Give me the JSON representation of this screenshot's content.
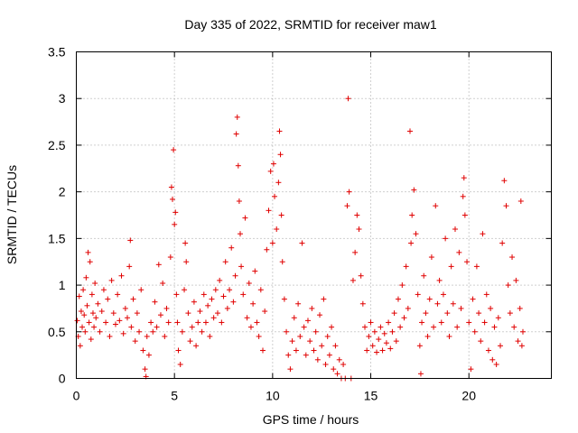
{
  "chart_data": {
    "type": "scatter",
    "title": "Day 335 of 2022, SRMTID for receiver maw1",
    "xlabel": "GPS time / hours",
    "ylabel": "SRMTID / TECUs",
    "xlim": [
      0,
      24.2
    ],
    "ylim": [
      0,
      3.5
    ],
    "x_ticks": [
      0,
      5,
      10,
      15,
      20
    ],
    "x_tick_labels": [
      "0",
      "5",
      "10",
      "15",
      "20"
    ],
    "y_ticks": [
      0,
      0.5,
      1,
      1.5,
      2,
      2.5,
      3,
      3.5
    ],
    "y_tick_labels": [
      "0",
      "0.5",
      "1",
      "1.5",
      "2",
      "2.5",
      "3",
      "3.5"
    ],
    "grid": true,
    "marker": "+",
    "color": "#e00000",
    "series": [
      {
        "name": "maw1",
        "points": [
          [
            0.05,
            0.62
          ],
          [
            0.1,
            0.45
          ],
          [
            0.15,
            0.88
          ],
          [
            0.2,
            0.35
          ],
          [
            0.25,
            0.72
          ],
          [
            0.3,
            0.55
          ],
          [
            0.35,
            0.95
          ],
          [
            0.4,
            0.68
          ],
          [
            0.45,
            0.5
          ],
          [
            0.5,
            1.08
          ],
          [
            0.55,
            0.78
          ],
          [
            0.6,
            1.35
          ],
          [
            0.65,
            0.6
          ],
          [
            0.7,
            1.25
          ],
          [
            0.75,
            0.42
          ],
          [
            0.8,
            0.9
          ],
          [
            0.85,
            0.7
          ],
          [
            0.9,
            0.55
          ],
          [
            0.95,
            1.02
          ],
          [
            1.0,
            0.65
          ],
          [
            1.1,
            0.8
          ],
          [
            1.2,
            0.5
          ],
          [
            1.3,
            0.72
          ],
          [
            1.4,
            0.95
          ],
          [
            1.5,
            0.6
          ],
          [
            1.6,
            0.85
          ],
          [
            1.7,
            0.45
          ],
          [
            1.8,
            1.05
          ],
          [
            1.9,
            0.7
          ],
          [
            2.0,
            0.58
          ],
          [
            2.1,
            0.9
          ],
          [
            2.2,
            0.62
          ],
          [
            2.3,
            1.1
          ],
          [
            2.4,
            0.48
          ],
          [
            2.5,
            0.75
          ],
          [
            2.6,
            0.65
          ],
          [
            2.7,
            1.2
          ],
          [
            2.75,
            1.48
          ],
          [
            2.8,
            0.55
          ],
          [
            2.9,
            0.85
          ],
          [
            3.0,
            0.4
          ],
          [
            3.1,
            0.7
          ],
          [
            3.2,
            0.5
          ],
          [
            3.3,
            0.95
          ],
          [
            3.4,
            0.3
          ],
          [
            3.5,
            0.1
          ],
          [
            3.55,
            0.02
          ],
          [
            3.6,
            0.45
          ],
          [
            3.7,
            0.25
          ],
          [
            3.8,
            0.6
          ],
          [
            3.9,
            0.5
          ],
          [
            4.0,
            0.82
          ],
          [
            4.1,
            0.55
          ],
          [
            4.2,
            1.22
          ],
          [
            4.3,
            0.68
          ],
          [
            4.4,
            1.02
          ],
          [
            4.5,
            0.45
          ],
          [
            4.6,
            0.75
          ],
          [
            4.7,
            0.6
          ],
          [
            4.8,
            1.3
          ],
          [
            4.85,
            2.05
          ],
          [
            4.9,
            1.92
          ],
          [
            4.95,
            2.45
          ],
          [
            5.0,
            1.65
          ],
          [
            5.05,
            1.78
          ],
          [
            5.1,
            0.9
          ],
          [
            5.15,
            0.6
          ],
          [
            5.2,
            0.3
          ],
          [
            5.3,
            0.15
          ],
          [
            5.4,
            0.5
          ],
          [
            5.5,
            0.95
          ],
          [
            5.55,
            1.45
          ],
          [
            5.6,
            1.25
          ],
          [
            5.7,
            0.7
          ],
          [
            5.8,
            0.4
          ],
          [
            5.9,
            0.55
          ],
          [
            6.0,
            0.82
          ],
          [
            6.1,
            0.35
          ],
          [
            6.2,
            0.6
          ],
          [
            6.3,
            0.72
          ],
          [
            6.4,
            0.5
          ],
          [
            6.5,
            0.9
          ],
          [
            6.6,
            0.6
          ],
          [
            6.7,
            0.78
          ],
          [
            6.8,
            0.45
          ],
          [
            6.9,
            0.85
          ],
          [
            7.0,
            0.65
          ],
          [
            7.1,
            0.95
          ],
          [
            7.2,
            0.7
          ],
          [
            7.3,
            1.05
          ],
          [
            7.4,
            0.6
          ],
          [
            7.5,
            0.88
          ],
          [
            7.6,
            1.25
          ],
          [
            7.7,
            0.75
          ],
          [
            7.8,
            0.95
          ],
          [
            7.9,
            1.4
          ],
          [
            8.0,
            0.82
          ],
          [
            8.1,
            1.1
          ],
          [
            8.15,
            2.62
          ],
          [
            8.2,
            2.8
          ],
          [
            8.25,
            2.28
          ],
          [
            8.3,
            1.9
          ],
          [
            8.35,
            1.55
          ],
          [
            8.4,
            1.2
          ],
          [
            8.5,
            0.9
          ],
          [
            8.6,
            1.72
          ],
          [
            8.7,
            0.65
          ],
          [
            8.8,
            1.02
          ],
          [
            8.9,
            0.55
          ],
          [
            9.0,
            0.8
          ],
          [
            9.1,
            1.15
          ],
          [
            9.2,
            0.6
          ],
          [
            9.3,
            0.45
          ],
          [
            9.4,
            0.95
          ],
          [
            9.5,
            0.3
          ],
          [
            9.6,
            0.72
          ],
          [
            9.7,
            1.38
          ],
          [
            9.8,
            1.8
          ],
          [
            9.9,
            2.22
          ],
          [
            10.0,
            1.45
          ],
          [
            10.05,
            2.3
          ],
          [
            10.1,
            1.95
          ],
          [
            10.2,
            1.6
          ],
          [
            10.3,
            2.1
          ],
          [
            10.35,
            2.65
          ],
          [
            10.4,
            2.4
          ],
          [
            10.45,
            1.75
          ],
          [
            10.5,
            1.25
          ],
          [
            10.6,
            0.85
          ],
          [
            10.7,
            0.5
          ],
          [
            10.8,
            0.25
          ],
          [
            10.9,
            0.1
          ],
          [
            11.0,
            0.4
          ],
          [
            11.1,
            0.65
          ],
          [
            11.2,
            0.3
          ],
          [
            11.3,
            0.8
          ],
          [
            11.4,
            0.45
          ],
          [
            11.5,
            1.45
          ],
          [
            11.6,
            0.55
          ],
          [
            11.7,
            0.25
          ],
          [
            11.8,
            0.62
          ],
          [
            11.9,
            0.4
          ],
          [
            12.0,
            0.75
          ],
          [
            12.1,
            0.3
          ],
          [
            12.2,
            0.5
          ],
          [
            12.3,
            0.2
          ],
          [
            12.4,
            0.68
          ],
          [
            12.5,
            0.35
          ],
          [
            12.6,
            0.85
          ],
          [
            12.7,
            0.15
          ],
          [
            12.8,
            0.45
          ],
          [
            12.9,
            0.25
          ],
          [
            13.0,
            0.55
          ],
          [
            13.1,
            0.1
          ],
          [
            13.2,
            0.35
          ],
          [
            13.3,
            0.05
          ],
          [
            13.4,
            0.2
          ],
          [
            13.5,
            0.0
          ],
          [
            13.6,
            0.15
          ],
          [
            13.7,
            0.0
          ],
          [
            13.8,
            1.85
          ],
          [
            13.85,
            3.0
          ],
          [
            13.9,
            2.0
          ],
          [
            14.0,
            0.0
          ],
          [
            14.1,
            1.05
          ],
          [
            14.2,
            1.35
          ],
          [
            14.3,
            1.75
          ],
          [
            14.4,
            1.6
          ],
          [
            14.5,
            1.1
          ],
          [
            14.6,
            0.8
          ],
          [
            14.7,
            0.55
          ],
          [
            14.8,
            0.3
          ],
          [
            14.9,
            0.45
          ],
          [
            15.0,
            0.6
          ],
          [
            15.1,
            0.35
          ],
          [
            15.2,
            0.5
          ],
          [
            15.3,
            0.28
          ],
          [
            15.4,
            0.42
          ],
          [
            15.5,
            0.55
          ],
          [
            15.6,
            0.3
          ],
          [
            15.7,
            0.48
          ],
          [
            15.8,
            0.38
          ],
          [
            15.9,
            0.6
          ],
          [
            16.0,
            0.32
          ],
          [
            16.1,
            0.5
          ],
          [
            16.2,
            0.7
          ],
          [
            16.3,
            0.4
          ],
          [
            16.4,
            0.85
          ],
          [
            16.5,
            0.55
          ],
          [
            16.6,
            1.0
          ],
          [
            16.7,
            0.65
          ],
          [
            16.8,
            1.2
          ],
          [
            16.9,
            0.75
          ],
          [
            17.0,
            2.65
          ],
          [
            17.05,
            1.45
          ],
          [
            17.1,
            1.75
          ],
          [
            17.2,
            2.02
          ],
          [
            17.3,
            1.55
          ],
          [
            17.4,
            0.9
          ],
          [
            17.5,
            0.35
          ],
          [
            17.55,
            0.05
          ],
          [
            17.6,
            0.6
          ],
          [
            17.7,
            1.1
          ],
          [
            17.8,
            0.7
          ],
          [
            17.9,
            0.45
          ],
          [
            18.0,
            0.85
          ],
          [
            18.1,
            1.3
          ],
          [
            18.2,
            0.55
          ],
          [
            18.3,
            1.85
          ],
          [
            18.4,
            0.8
          ],
          [
            18.5,
            1.05
          ],
          [
            18.6,
            0.6
          ],
          [
            18.7,
            0.9
          ],
          [
            18.8,
            1.5
          ],
          [
            18.9,
            0.7
          ],
          [
            19.0,
            0.45
          ],
          [
            19.1,
            1.2
          ],
          [
            19.2,
            0.8
          ],
          [
            19.3,
            1.6
          ],
          [
            19.4,
            0.55
          ],
          [
            19.5,
            1.35
          ],
          [
            19.6,
            0.75
          ],
          [
            19.7,
            1.95
          ],
          [
            19.75,
            2.15
          ],
          [
            19.8,
            1.75
          ],
          [
            19.9,
            1.25
          ],
          [
            20.0,
            0.6
          ],
          [
            20.1,
            0.1
          ],
          [
            20.2,
            0.85
          ],
          [
            20.3,
            0.5
          ],
          [
            20.4,
            1.2
          ],
          [
            20.5,
            0.7
          ],
          [
            20.6,
            0.4
          ],
          [
            20.7,
            1.55
          ],
          [
            20.8,
            0.6
          ],
          [
            20.9,
            0.9
          ],
          [
            21.0,
            0.3
          ],
          [
            21.1,
            0.75
          ],
          [
            21.2,
            0.2
          ],
          [
            21.3,
            0.55
          ],
          [
            21.4,
            0.15
          ],
          [
            21.5,
            0.65
          ],
          [
            21.6,
            0.35
          ],
          [
            21.7,
            1.45
          ],
          [
            21.8,
            2.12
          ],
          [
            21.9,
            1.85
          ],
          [
            22.0,
            1.0
          ],
          [
            22.1,
            0.7
          ],
          [
            22.2,
            1.3
          ],
          [
            22.3,
            0.55
          ],
          [
            22.4,
            1.05
          ],
          [
            22.5,
            0.4
          ],
          [
            22.6,
            0.75
          ],
          [
            22.65,
            1.9
          ],
          [
            22.7,
            0.35
          ],
          [
            22.75,
            0.5
          ]
        ]
      }
    ]
  }
}
